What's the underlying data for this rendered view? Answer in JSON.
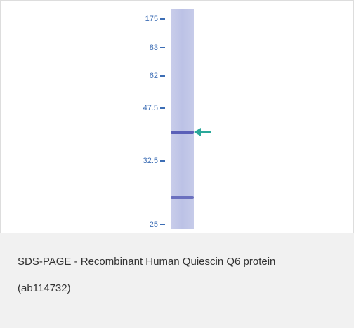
{
  "figure": {
    "markers": [
      {
        "label": "175"
      },
      {
        "label": "83"
      },
      {
        "label": "62"
      },
      {
        "label": "47.5"
      },
      {
        "label": "32.5"
      },
      {
        "label": "25"
      }
    ],
    "caption": "SDS-PAGE - Recombinant Human Quiescin Q6 protein (ab114732)"
  }
}
